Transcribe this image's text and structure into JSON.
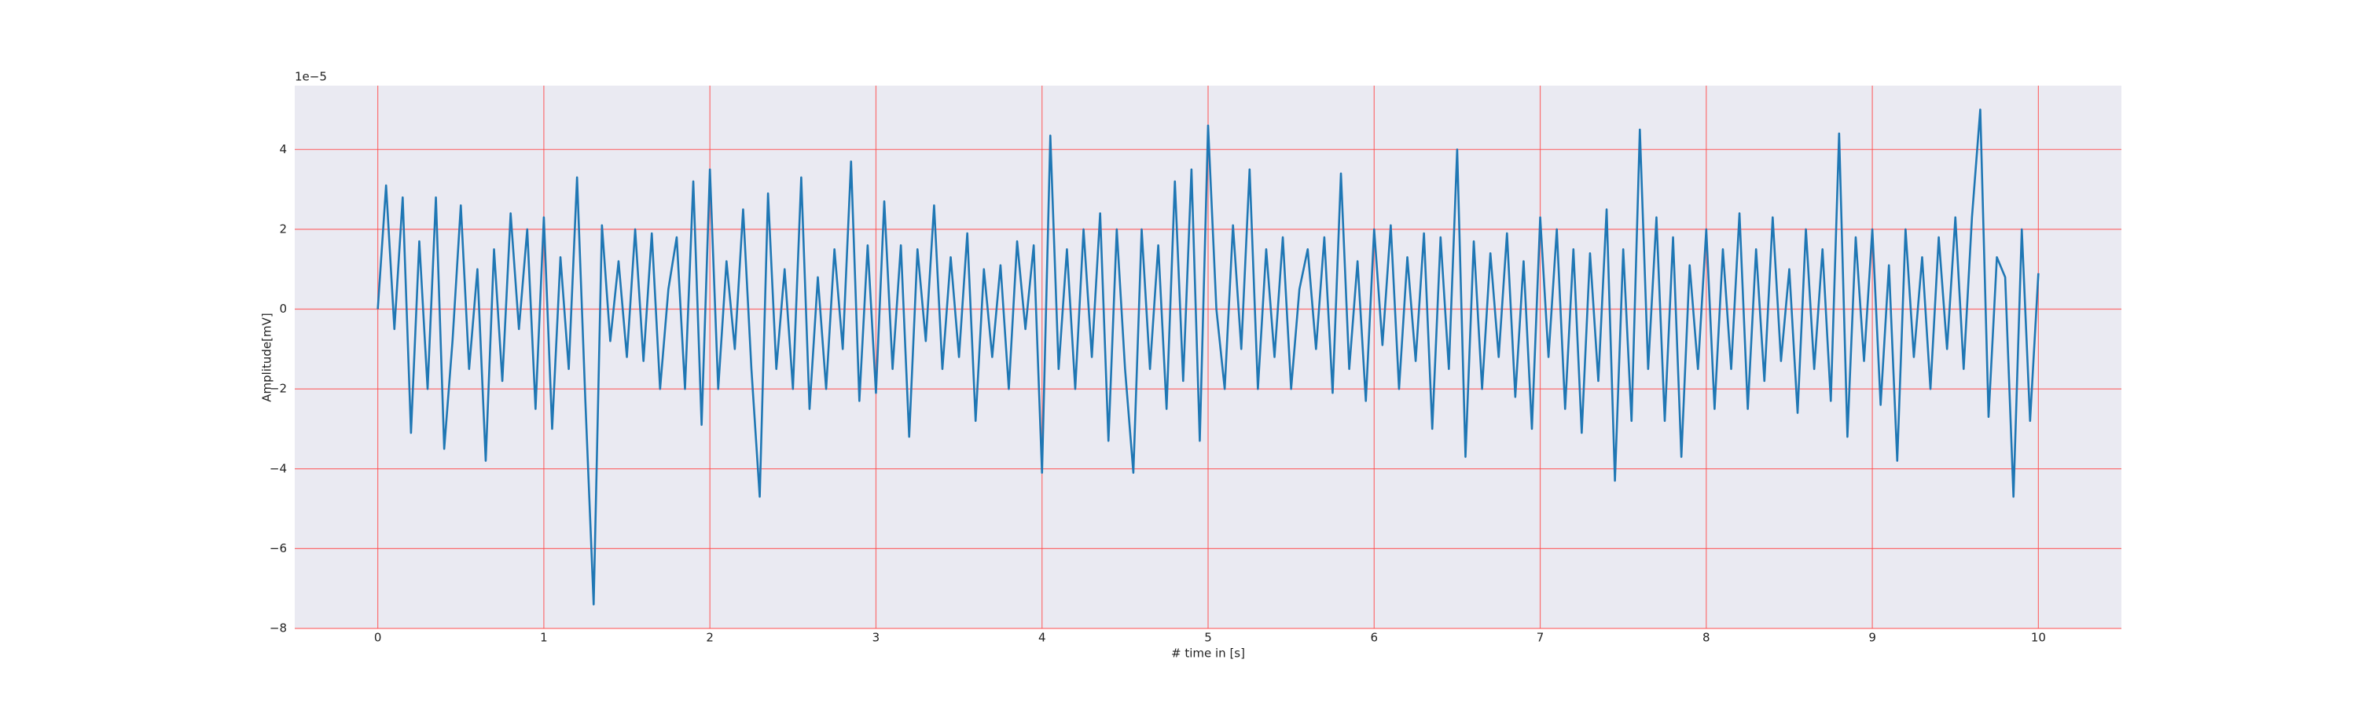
{
  "chart_data": {
    "type": "line",
    "xlabel": "# time in [s]",
    "ylabel": "Amplitude[mV]",
    "y_offset_label": "1e−5",
    "grid": true,
    "grid_color": "#ff4d4d",
    "background": "#eaeaf2",
    "xlim": [
      -0.5,
      10.5
    ],
    "ylim": [
      -8,
      5.6
    ],
    "xticks": [
      0,
      1,
      2,
      3,
      4,
      5,
      6,
      7,
      8,
      9,
      10
    ],
    "yticks": [
      {
        "value": -8,
        "label": "−8"
      },
      {
        "value": -6,
        "label": "−6"
      },
      {
        "value": -4,
        "label": "−4"
      },
      {
        "value": -2,
        "label": "−2"
      },
      0,
      2,
      4
    ],
    "x": [
      0,
      0.05,
      0.1,
      0.15,
      0.2,
      0.25,
      0.3,
      0.35,
      0.4,
      0.45,
      0.5,
      0.55,
      0.6,
      0.65,
      0.7,
      0.75,
      0.8,
      0.85,
      0.9,
      0.95,
      1,
      1.05,
      1.1,
      1.15,
      1.2,
      1.25,
      1.3,
      1.35,
      1.4,
      1.45,
      1.5,
      1.55,
      1.6,
      1.65,
      1.7,
      1.75,
      1.8,
      1.85,
      1.9,
      1.95,
      2,
      2.05,
      2.1,
      2.15,
      2.2,
      2.25,
      2.3,
      2.35,
      2.4,
      2.45,
      2.5,
      2.55,
      2.6,
      2.65,
      2.7,
      2.75,
      2.8,
      2.85,
      2.9,
      2.95,
      3,
      3.05,
      3.1,
      3.15,
      3.2,
      3.25,
      3.3,
      3.35,
      3.4,
      3.45,
      3.5,
      3.55,
      3.6,
      3.65,
      3.7,
      3.75,
      3.8,
      3.85,
      3.9,
      3.95,
      4,
      4.05,
      4.1,
      4.15,
      4.2,
      4.25,
      4.3,
      4.35,
      4.4,
      4.45,
      4.5,
      4.55,
      4.6,
      4.65,
      4.7,
      4.75,
      4.8,
      4.85,
      4.9,
      4.95,
      5,
      5.05,
      5.1,
      5.15,
      5.2,
      5.25,
      5.3,
      5.35,
      5.4,
      5.45,
      5.5,
      5.55,
      5.6,
      5.65,
      5.7,
      5.75,
      5.8,
      5.85,
      5.9,
      5.95,
      6,
      6.05,
      6.1,
      6.15,
      6.2,
      6.25,
      6.3,
      6.35,
      6.4,
      6.45,
      6.5,
      6.55,
      6.6,
      6.65,
      6.7,
      6.75,
      6.8,
      6.85,
      6.9,
      6.95,
      7,
      7.05,
      7.1,
      7.15,
      7.2,
      7.25,
      7.3,
      7.35,
      7.4,
      7.45,
      7.5,
      7.55,
      7.6,
      7.65,
      7.7,
      7.75,
      7.8,
      7.85,
      7.9,
      7.95,
      8,
      8.05,
      8.1,
      8.15,
      8.2,
      8.25,
      8.3,
      8.35,
      8.4,
      8.45,
      8.5,
      8.55,
      8.6,
      8.65,
      8.7,
      8.75,
      8.8,
      8.85,
      8.9,
      8.95,
      9,
      9.05,
      9.1,
      9.15,
      9.2,
      9.25,
      9.3,
      9.35,
      9.4,
      9.45,
      9.5,
      9.55,
      9.6,
      9.65,
      9.7,
      9.75,
      9.8,
      9.85,
      9.9,
      9.95,
      10
    ],
    "series": [
      {
        "color": "#1f77b4",
        "values": [
          0,
          3.1,
          -0.5,
          2.8,
          -3.1,
          1.7,
          -2.0,
          2.8,
          -3.5,
          -0.8,
          2.6,
          -1.5,
          1.0,
          -3.8,
          1.5,
          -1.8,
          2.4,
          -0.5,
          2.0,
          -2.5,
          2.3,
          -3.0,
          1.3,
          -1.5,
          3.3,
          -2.3,
          -7.4,
          2.1,
          -0.8,
          1.2,
          -1.2,
          2.0,
          -1.3,
          1.9,
          -2.0,
          0.5,
          1.8,
          -2.0,
          3.2,
          -2.9,
          3.5,
          -2.0,
          1.2,
          -1.0,
          2.5,
          -1.5,
          -4.7,
          2.9,
          -1.5,
          1.0,
          -2.0,
          3.3,
          -2.5,
          0.8,
          -2.0,
          1.5,
          -1.0,
          3.7,
          -2.3,
          1.6,
          -2.1,
          2.7,
          -1.5,
          1.6,
          -3.2,
          1.5,
          -0.8,
          2.6,
          -1.5,
          1.3,
          -1.2,
          1.9,
          -2.8,
          1.0,
          -1.2,
          1.1,
          -2.0,
          1.7,
          -0.5,
          1.6,
          -4.1,
          4.35,
          -1.5,
          1.5,
          -2.0,
          2.0,
          -1.2,
          2.4,
          -3.3,
          2.0,
          -1.5,
          -4.1,
          2.0,
          -1.5,
          1.6,
          -2.5,
          3.2,
          -1.8,
          3.5,
          -3.3,
          4.6,
          0.0,
          -2.0,
          2.1,
          -1.0,
          3.5,
          -2.0,
          1.5,
          -1.2,
          1.8,
          -2.0,
          0.5,
          1.5,
          -1.0,
          1.8,
          -2.1,
          3.4,
          -1.5,
          1.2,
          -2.3,
          2.0,
          -0.9,
          2.1,
          -2.0,
          1.3,
          -1.3,
          1.9,
          -3.0,
          1.8,
          -1.5,
          4.0,
          -3.7,
          1.7,
          -2.0,
          1.4,
          -1.2,
          1.9,
          -2.2,
          1.2,
          -3.0,
          2.3,
          -1.2,
          2.0,
          -2.5,
          1.5,
          -3.1,
          1.4,
          -1.8,
          2.5,
          -4.3,
          1.5,
          -2.8,
          4.5,
          -1.5,
          2.3,
          -2.8,
          1.8,
          -3.7,
          1.1,
          -1.5,
          2.0,
          -2.5,
          1.5,
          -1.5,
          2.4,
          -2.5,
          1.5,
          -1.8,
          2.3,
          -1.3,
          1.0,
          -2.6,
          2.0,
          -1.5,
          1.5,
          -2.3,
          4.4,
          -3.2,
          1.8,
          -1.3,
          2.0,
          -2.4,
          1.1,
          -3.8,
          2.0,
          -1.2,
          1.3,
          -2.0,
          1.8,
          -1.0,
          2.3,
          -1.5,
          2.3,
          5.0,
          -2.7,
          1.3,
          0.8,
          -4.7,
          2.0,
          -2.8,
          0.9
        ]
      }
    ]
  }
}
